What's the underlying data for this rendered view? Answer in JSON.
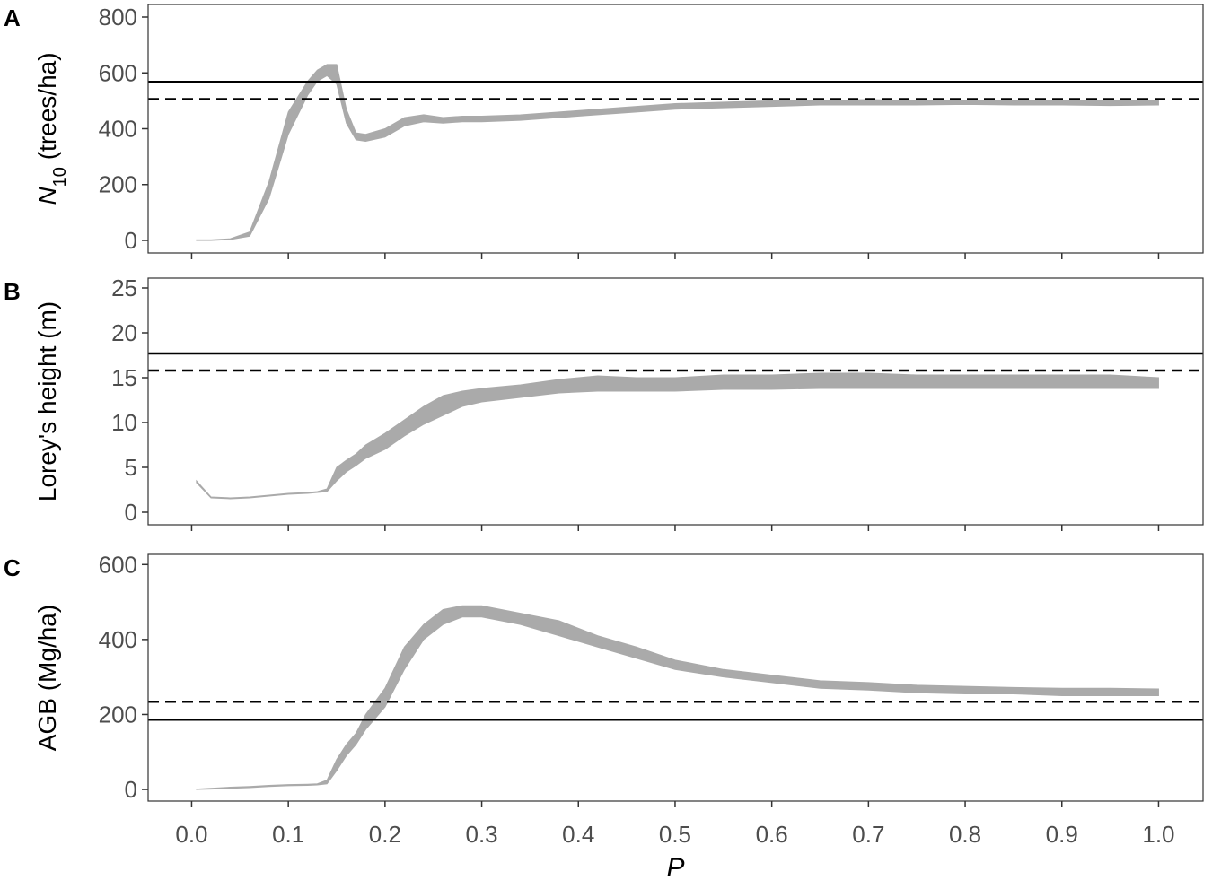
{
  "chart_data": [
    {
      "type": "band",
      "panel_label": "A",
      "ylabel": [
        {
          "text": "N",
          "style": "italic"
        },
        {
          "text": "10",
          "style": "sub"
        },
        {
          "text": " (trees/ha)",
          "style": "normal"
        }
      ],
      "color": "#aaaaaa",
      "x": [
        0.005,
        0.02,
        0.04,
        0.06,
        0.08,
        0.1,
        0.12,
        0.13,
        0.14,
        0.15,
        0.16,
        0.17,
        0.18,
        0.2,
        0.22,
        0.24,
        0.26,
        0.28,
        0.3,
        0.34,
        0.38,
        0.42,
        0.46,
        0.5,
        0.55,
        0.6,
        0.65,
        0.7,
        0.75,
        0.8,
        0.85,
        0.9,
        0.95,
        1.0
      ],
      "lower": [
        0,
        0,
        3,
        15,
        150,
        380,
        520,
        570,
        590,
        560,
        420,
        360,
        355,
        370,
        410,
        425,
        420,
        425,
        425,
        430,
        440,
        450,
        460,
        470,
        475,
        480,
        485,
        485,
        485,
        487,
        485,
        485,
        483,
        485
      ],
      "upper": [
        2,
        2,
        6,
        30,
        210,
        460,
        570,
        610,
        630,
        630,
        470,
        385,
        380,
        400,
        440,
        450,
        440,
        445,
        445,
        450,
        460,
        470,
        480,
        490,
        495,
        500,
        500,
        505,
        500,
        502,
        500,
        500,
        500,
        500
      ],
      "hlines": [
        {
          "value": 568,
          "style": "solid"
        },
        {
          "value": 506,
          "style": "dashed"
        }
      ],
      "xlim": [
        -0.045,
        1.046
      ],
      "xticks": [
        {
          "value": 0,
          "label": "0.0"
        },
        0.1,
        0.2,
        0.3,
        0.4,
        0.5,
        0.6,
        0.7,
        0.8,
        0.9,
        {
          "value": 1,
          "label": "1.0"
        }
      ],
      "ylim": [
        -45,
        845
      ],
      "yticks": [
        0,
        200,
        400,
        600,
        800
      ]
    },
    {
      "type": "band",
      "panel_label": "B",
      "ylabel": [
        {
          "text": "Lorey's height (m)",
          "style": "normal"
        }
      ],
      "color": "#aaaaaa",
      "x": [
        0.005,
        0.02,
        0.04,
        0.06,
        0.08,
        0.1,
        0.12,
        0.13,
        0.14,
        0.15,
        0.16,
        0.17,
        0.18,
        0.2,
        0.22,
        0.24,
        0.26,
        0.28,
        0.3,
        0.34,
        0.38,
        0.42,
        0.46,
        0.5,
        0.55,
        0.6,
        0.65,
        0.7,
        0.75,
        0.8,
        0.85,
        0.9,
        0.95,
        1.0
      ],
      "lower": [
        3.3,
        1.6,
        1.5,
        1.6,
        1.8,
        2.0,
        2.1,
        2.2,
        2.3,
        3.5,
        4.5,
        5.2,
        6,
        7,
        8.5,
        9.8,
        10.8,
        11.8,
        12.3,
        12.8,
        13.3,
        13.5,
        13.5,
        13.5,
        13.7,
        13.7,
        13.8,
        13.8,
        13.8,
        13.8,
        13.8,
        13.8,
        13.8,
        13.8
      ],
      "upper": [
        3.5,
        1.7,
        1.6,
        1.7,
        1.9,
        2.1,
        2.2,
        2.3,
        2.6,
        5,
        5.8,
        6.5,
        7.5,
        8.8,
        10.3,
        11.8,
        13,
        13.5,
        13.8,
        14.2,
        14.8,
        15.2,
        15,
        15,
        15.3,
        15.3,
        15.5,
        15.5,
        15.3,
        15.3,
        15.3,
        15.3,
        15.3,
        15.0
      ],
      "hlines": [
        {
          "value": 17.7,
          "style": "solid"
        },
        {
          "value": 15.8,
          "style": "dashed"
        }
      ],
      "xlim": [
        -0.045,
        1.046
      ],
      "xticks": [
        {
          "value": 0,
          "label": "0.0"
        },
        0.1,
        0.2,
        0.3,
        0.4,
        0.5,
        0.6,
        0.7,
        0.8,
        0.9,
        {
          "value": 1,
          "label": "1.0"
        }
      ],
      "ylim": [
        -1.4,
        26.1
      ],
      "yticks": [
        0,
        5,
        10,
        15,
        20,
        25
      ]
    },
    {
      "type": "band",
      "panel_label": "C",
      "ylabel": [
        {
          "text": "AGB (Mg/ha)",
          "style": "normal"
        }
      ],
      "xlabel": "P",
      "color": "#aaaaaa",
      "x": [
        0.005,
        0.02,
        0.04,
        0.06,
        0.08,
        0.1,
        0.12,
        0.13,
        0.14,
        0.15,
        0.16,
        0.17,
        0.18,
        0.2,
        0.22,
        0.24,
        0.26,
        0.28,
        0.3,
        0.34,
        0.38,
        0.42,
        0.46,
        0.5,
        0.55,
        0.6,
        0.65,
        0.7,
        0.75,
        0.8,
        0.85,
        0.9,
        0.95,
        1.0
      ],
      "lower": [
        0,
        1,
        3,
        5,
        8,
        10,
        11,
        12,
        15,
        50,
        90,
        120,
        160,
        220,
        320,
        400,
        440,
        460,
        460,
        440,
        410,
        380,
        350,
        320,
        300,
        285,
        270,
        265,
        258,
        255,
        255,
        250,
        250,
        250
      ],
      "upper": [
        1,
        3,
        6,
        8,
        11,
        13,
        14,
        15,
        25,
        80,
        120,
        150,
        200,
        270,
        380,
        440,
        480,
        490,
        490,
        470,
        450,
        410,
        380,
        345,
        320,
        305,
        290,
        285,
        278,
        275,
        272,
        270,
        270,
        268
      ],
      "hlines": [
        {
          "value": 186,
          "style": "solid"
        },
        {
          "value": 234,
          "style": "dashed"
        }
      ],
      "xlim": [
        -0.045,
        1.046
      ],
      "xticks": [
        {
          "value": 0,
          "label": "0.0"
        },
        0.1,
        0.2,
        0.3,
        0.4,
        0.5,
        0.6,
        0.7,
        0.8,
        0.9,
        {
          "value": 1,
          "label": "1.0"
        }
      ],
      "ylim": [
        -31,
        627
      ],
      "yticks": [
        0,
        200,
        400,
        600
      ]
    }
  ]
}
